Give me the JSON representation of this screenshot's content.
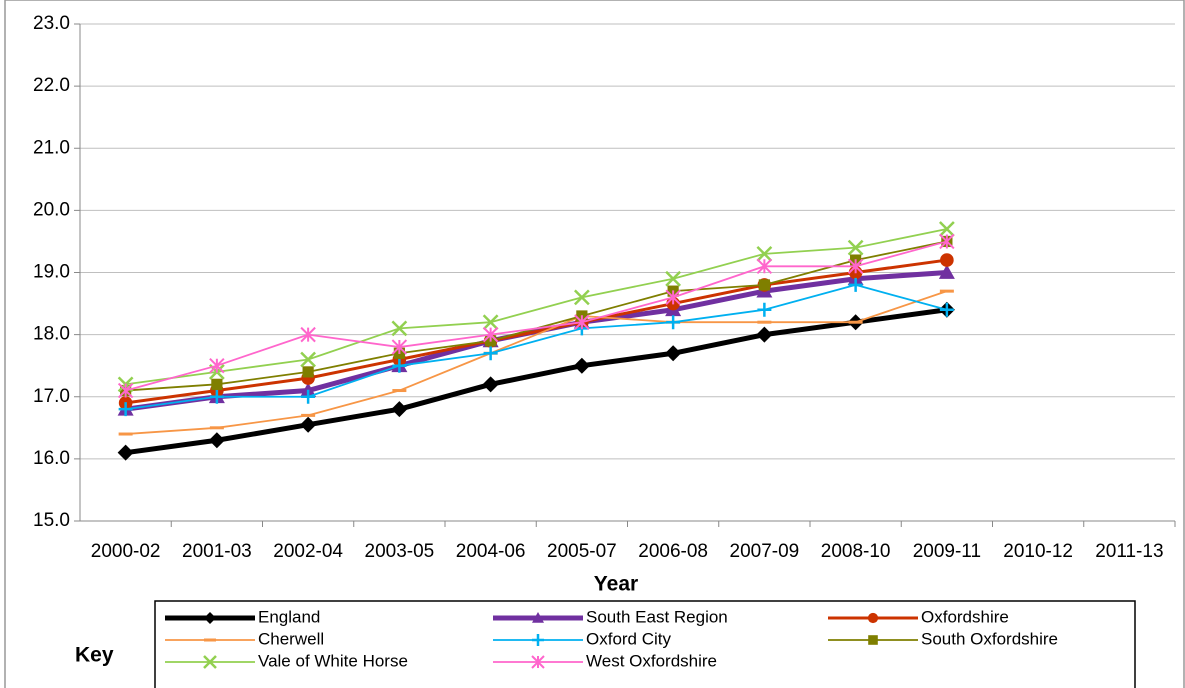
{
  "chart_data": {
    "type": "line",
    "x_label": "Year",
    "legend_title": "Key",
    "categories": [
      "2000-02",
      "2001-03",
      "2002-04",
      "2003-05",
      "2004-06",
      "2005-07",
      "2006-08",
      "2007-09",
      "2008-10",
      "2009-11",
      "2010-12",
      "2011-13"
    ],
    "ylim": [
      15,
      23
    ],
    "yticks": [
      {
        "value": 15,
        "label": "15.0"
      },
      {
        "value": 16,
        "label": "16.0"
      },
      {
        "value": 17,
        "label": "17.0"
      },
      {
        "value": 18,
        "label": "18.0"
      },
      {
        "value": 19,
        "label": "19.0"
      },
      {
        "value": 20,
        "label": "20.0"
      },
      {
        "value": 21,
        "label": "21.0"
      },
      {
        "value": 22,
        "label": "22.0"
      },
      {
        "value": 23,
        "label": "23.0"
      }
    ],
    "grid": true,
    "series": [
      {
        "name": "England",
        "color": "#000000",
        "marker": "diamond",
        "width": 5,
        "values": [
          16.1,
          16.3,
          16.55,
          16.8,
          17.2,
          17.5,
          17.7,
          18.0,
          18.2,
          18.4,
          null,
          null
        ]
      },
      {
        "name": "South East Region",
        "color": "#7030a0",
        "marker": "triangle",
        "width": 5,
        "values": [
          16.8,
          17.0,
          17.1,
          17.5,
          17.9,
          18.2,
          18.4,
          18.7,
          18.9,
          19.0,
          null,
          null
        ]
      },
      {
        "name": "Oxfordshire",
        "color": "#cc3300",
        "marker": "circle",
        "width": 3,
        "values": [
          16.9,
          17.1,
          17.3,
          17.6,
          17.9,
          18.2,
          18.5,
          18.8,
          19.0,
          19.2,
          null,
          null
        ]
      },
      {
        "name": "Cherwell",
        "color": "#f79646",
        "marker": "dash",
        "width": 1.8,
        "values": [
          16.4,
          16.5,
          16.7,
          17.1,
          17.7,
          18.3,
          18.2,
          18.2,
          18.2,
          18.7,
          null,
          null
        ]
      },
      {
        "name": "Oxford City",
        "color": "#00b0f0",
        "marker": "plus",
        "width": 1.8,
        "values": [
          16.8,
          17.0,
          17.0,
          17.5,
          17.7,
          18.1,
          18.2,
          18.4,
          18.8,
          18.4,
          null,
          null
        ]
      },
      {
        "name": "South Oxfordshire",
        "color": "#7f7f00",
        "marker": "square",
        "width": 1.8,
        "values": [
          17.1,
          17.2,
          17.4,
          17.7,
          17.9,
          18.3,
          18.7,
          18.8,
          19.2,
          19.5,
          null,
          null
        ]
      },
      {
        "name": "Vale of White Horse",
        "color": "#92d050",
        "marker": "x",
        "width": 1.8,
        "values": [
          17.2,
          17.4,
          17.6,
          18.1,
          18.2,
          18.6,
          18.9,
          19.3,
          19.4,
          19.7,
          null,
          null
        ]
      },
      {
        "name": "West Oxfordshire",
        "color": "#ff66cc",
        "marker": "star",
        "width": 1.8,
        "values": [
          17.1,
          17.5,
          18.0,
          17.8,
          18.0,
          18.2,
          18.6,
          19.1,
          19.1,
          19.5,
          null,
          null
        ]
      }
    ]
  }
}
